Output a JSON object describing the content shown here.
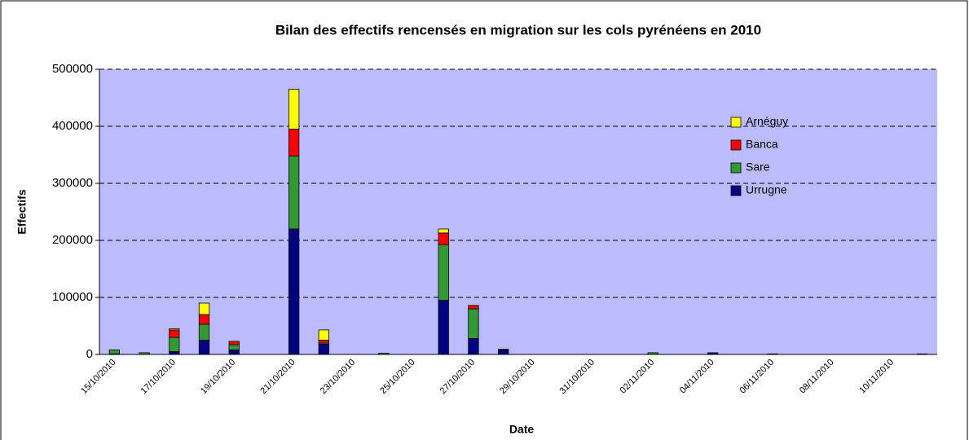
{
  "chart_data": {
    "type": "bar",
    "stacked": true,
    "title": "Bilan des effectifs rencensés en migration sur les cols pyrénéens en 2010",
    "x_label": "Date",
    "y_label": "Effectifs",
    "categories": [
      "15/10/2010",
      null,
      "17/10/2010",
      null,
      "19/10/2010",
      null,
      "21/10/2010",
      null,
      "23/10/2010",
      null,
      "25/10/2010",
      null,
      "27/10/2010",
      null,
      "29/10/2010",
      null,
      "31/10/2010",
      null,
      "02/11/2010",
      null,
      "04/11/2010",
      null,
      "06/11/2010",
      null,
      "08/11/2010",
      null,
      "10/11/2010",
      null
    ],
    "series": [
      {
        "name": "Urrugne",
        "color": "#000080",
        "values": [
          1000,
          0,
          5000,
          25000,
          8000,
          0,
          220000,
          18000,
          0,
          0,
          0,
          95000,
          28000,
          8000,
          0,
          0,
          0,
          0,
          0,
          0,
          3000,
          0,
          1000,
          0,
          0,
          0,
          0,
          1000
        ]
      },
      {
        "name": "Sare",
        "color": "#339933",
        "values": [
          7000,
          3000,
          25000,
          28000,
          9000,
          0,
          128000,
          2000,
          0,
          2000,
          0,
          97000,
          52000,
          1000,
          0,
          0,
          0,
          0,
          3000,
          0,
          0,
          0,
          0,
          0,
          0,
          0,
          0,
          0
        ]
      },
      {
        "name": "Banca",
        "color": "#ff0000",
        "values": [
          0,
          0,
          13000,
          17000,
          6000,
          0,
          47000,
          5000,
          0,
          0,
          0,
          21000,
          6000,
          0,
          0,
          0,
          0,
          0,
          0,
          0,
          0,
          0,
          0,
          0,
          0,
          0,
          0,
          0
        ]
      },
      {
        "name": "Arnéguy",
        "color": "#ffff00",
        "values": [
          0,
          0,
          2000,
          20000,
          0,
          0,
          70000,
          18000,
          0,
          0,
          0,
          7000,
          0,
          0,
          0,
          0,
          0,
          0,
          0,
          0,
          0,
          0,
          0,
          0,
          0,
          0,
          0,
          0
        ]
      }
    ],
    "ylim": [
      0,
      500000
    ],
    "yticks": [
      0,
      100000,
      200000,
      300000,
      400000,
      500000
    ],
    "grid": true,
    "legend": "upper right",
    "plot_background": "#bbbbff"
  }
}
